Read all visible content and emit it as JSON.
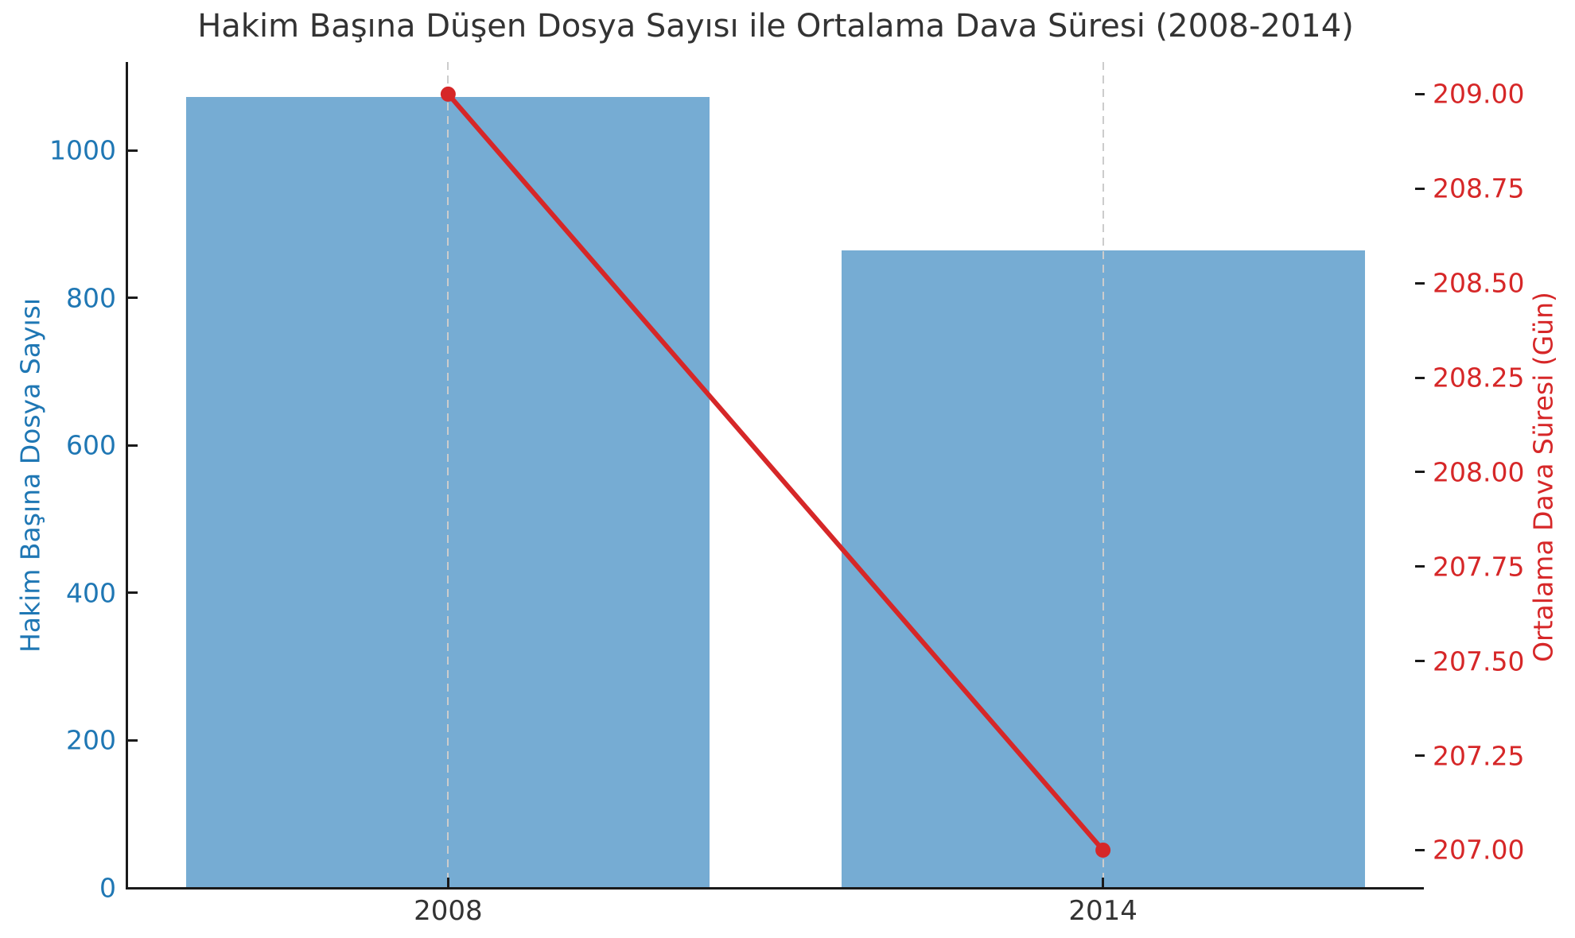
{
  "chart_data": {
    "type": "bar",
    "subtype": "dual-axis bar + line combo",
    "title": "Hakim Başına Düşen Dosya Sayısı ile Ortalama Dava Süresi (2008-2014)",
    "categories": [
      "2008",
      "2014"
    ],
    "series": [
      {
        "name": "Hakim Başına Dosya Sayısı",
        "type": "bar",
        "axis": "left",
        "values": [
          1073,
          865
        ],
        "color": "#76acd3"
      },
      {
        "name": "Ortalama Dava Süresi (Gün)",
        "type": "line",
        "axis": "right",
        "values": [
          209.0,
          207.0
        ],
        "color": "#d62728",
        "marker": "circle"
      }
    ],
    "left_axis": {
      "label": "Hakim Başına Dosya Sayısı",
      "color": "#1f77b4",
      "ticks": [
        0,
        200,
        400,
        600,
        800,
        1000
      ],
      "ylim": [
        0,
        1120
      ]
    },
    "right_axis": {
      "label": "Ortalama Dava Süresi (Gün)",
      "color": "#d62728",
      "ticks": [
        "207.00",
        "207.25",
        "207.50",
        "207.75",
        "208.00",
        "208.25",
        "208.50",
        "208.75",
        "209.00"
      ],
      "ylim": [
        206.9,
        209.085
      ]
    },
    "x_axis": {
      "tick_labels": [
        "2008",
        "2014"
      ],
      "color": "#333333"
    },
    "grid": {
      "horizontal": "dashed, both axes tick sets",
      "vertical": "dashed at each category",
      "major_color": "#cccccc",
      "minor_color": "#e0e0e0"
    },
    "legend": "none",
    "background": "#ffffff"
  }
}
